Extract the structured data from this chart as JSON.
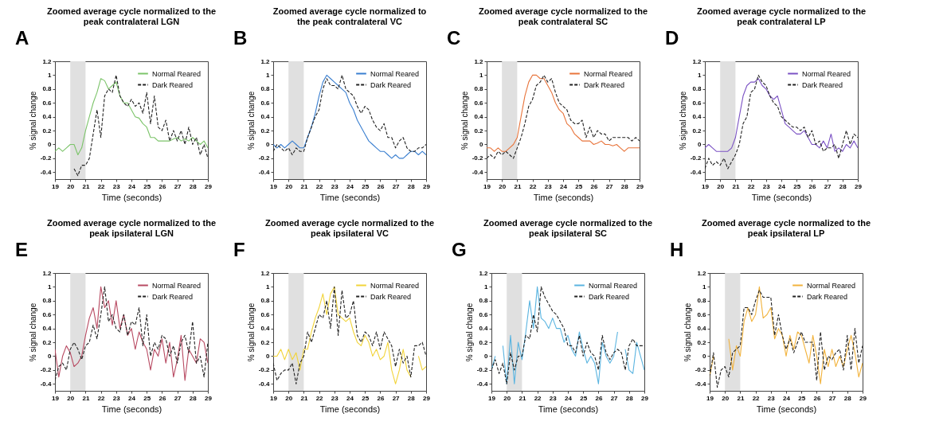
{
  "chart_data": [
    {
      "type": "line",
      "title": "Zoomed average cycle normalized to the\npeak contralateral LGN",
      "annotations": [
        "A"
      ],
      "xlabel": "Time (seconds)",
      "ylabel": "% signal change",
      "xlim": [
        19,
        29
      ],
      "xticks": [
        19,
        20,
        21,
        22,
        23,
        24,
        25,
        26,
        27,
        28,
        29
      ],
      "ylim": [
        -0.5,
        1.2
      ],
      "yticks": [
        -0.4,
        -0.2,
        0,
        0.2,
        0.4,
        0.6,
        0.8,
        1,
        1.2
      ],
      "grid": false,
      "legend": "top right",
      "marker": "none",
      "bands": [
        {
          "axis": "x",
          "from": 20,
          "to": 21,
          "color": "#e0e0e0"
        }
      ],
      "x": [
        19,
        19.25,
        19.5,
        19.75,
        20,
        20.25,
        20.5,
        20.75,
        21,
        21.25,
        21.5,
        21.75,
        22,
        22.25,
        22.5,
        22.75,
        23,
        23.25,
        23.5,
        23.75,
        24,
        24.25,
        24.5,
        24.75,
        25,
        25.25,
        25.5,
        25.75,
        26,
        26.25,
        26.5,
        26.75,
        27,
        27.25,
        27.5,
        27.75,
        28,
        28.25,
        28.5,
        28.75,
        29
      ],
      "series": [
        {
          "name": "Normal Reared",
          "color": "#7cc46a",
          "line_style": "solid",
          "values": [
            -0.1,
            -0.05,
            -0.1,
            -0.05,
            0,
            0,
            -0.15,
            -0.05,
            0.2,
            0.4,
            0.6,
            0.75,
            0.95,
            0.92,
            0.8,
            0.85,
            0.9,
            0.7,
            0.6,
            0.6,
            0.5,
            0.4,
            0.38,
            0.3,
            0.25,
            0.1,
            0.1,
            0.05,
            0.05,
            0.05,
            0.05,
            0.08,
            0.1,
            0.05,
            0.08,
            0.05,
            0.1,
            0.05,
            0,
            0.05,
            -0.05
          ]
        },
        {
          "name": "Dark Reared",
          "color": "#222222",
          "line_style": "dashed",
          "values": [
            null,
            null,
            null,
            null,
            null,
            -0.35,
            -0.45,
            -0.3,
            -0.3,
            -0.2,
            0.15,
            0.5,
            0.1,
            0.7,
            0.8,
            0.75,
            1,
            0.7,
            0.6,
            0.55,
            0.65,
            0.55,
            0.6,
            0.45,
            0.75,
            0.3,
            0.7,
            0.25,
            0.2,
            0.35,
            0.05,
            0.2,
            0.05,
            0.2,
            0,
            0.25,
            0,
            0.1,
            -0.15,
            0,
            -0.2
          ]
        }
      ]
    },
    {
      "type": "line",
      "title": "Zoomed average cycle normalized to\nthe peak contralateral VC",
      "annotations": [
        "B"
      ],
      "xlabel": "Time (seconds)",
      "ylabel": "% signal change",
      "xlim": [
        19,
        29
      ],
      "xticks": [
        19,
        20,
        21,
        22,
        23,
        24,
        25,
        26,
        27,
        28,
        29
      ],
      "ylim": [
        -0.5,
        1.2
      ],
      "yticks": [
        -0.4,
        -0.2,
        0,
        0.2,
        0.4,
        0.6,
        0.8,
        1,
        1.2
      ],
      "grid": false,
      "legend": "top right",
      "marker": "none",
      "bands": [
        {
          "axis": "x",
          "from": 20,
          "to": 21,
          "color": "#e0e0e0"
        }
      ],
      "x": [
        19,
        19.25,
        19.5,
        19.75,
        20,
        20.25,
        20.5,
        20.75,
        21,
        21.25,
        21.5,
        21.75,
        22,
        22.25,
        22.5,
        22.75,
        23,
        23.25,
        23.5,
        23.75,
        24,
        24.25,
        24.5,
        24.75,
        25,
        25.25,
        25.5,
        25.75,
        26,
        26.25,
        26.5,
        26.75,
        27,
        27.25,
        27.5,
        27.75,
        28,
        28.25,
        28.5,
        28.75,
        29
      ],
      "series": [
        {
          "name": "Normal Reared",
          "color": "#3a7fd0",
          "line_style": "solid",
          "values": [
            0,
            -0.05,
            0,
            -0.05,
            0,
            0.05,
            0,
            -0.05,
            -0.05,
            0.1,
            0.25,
            0.45,
            0.7,
            0.9,
            1,
            0.95,
            0.9,
            0.85,
            0.8,
            0.75,
            0.6,
            0.5,
            0.35,
            0.25,
            0.15,
            0.05,
            0,
            -0.05,
            -0.1,
            -0.1,
            -0.15,
            -0.2,
            -0.15,
            -0.2,
            -0.2,
            -0.15,
            -0.1,
            -0.1,
            -0.15,
            -0.1,
            -0.15
          ]
        },
        {
          "name": "Dark Reared",
          "color": "#222222",
          "line_style": "dashed",
          "values": [
            -0.1,
            0,
            -0.05,
            -0.1,
            -0.05,
            -0.15,
            -0.05,
            -0.1,
            -0.1,
            0.1,
            0.25,
            0.4,
            0.5,
            0.8,
            0.95,
            0.85,
            0.85,
            0.8,
            1,
            0.8,
            0.75,
            0.7,
            0.55,
            0.45,
            0.55,
            0.5,
            0.35,
            0.25,
            0.2,
            0.3,
            0.1,
            0.1,
            -0.05,
            0.05,
            0.1,
            -0.05,
            -0.1,
            -0.1,
            -0.05,
            -0.05,
            0
          ]
        }
      ]
    },
    {
      "type": "line",
      "title": "Zoomed average cycle normalized to the\npeak contralateral SC",
      "annotations": [
        "C"
      ],
      "xlabel": "Time (seconds)",
      "ylabel": "% signal change",
      "xlim": [
        19,
        29
      ],
      "xticks": [
        19,
        20,
        21,
        22,
        23,
        24,
        25,
        26,
        27,
        28,
        29
      ],
      "ylim": [
        -0.5,
        1.2
      ],
      "yticks": [
        -0.4,
        -0.2,
        0,
        0.2,
        0.4,
        0.6,
        0.8,
        1,
        1.2
      ],
      "grid": false,
      "legend": "top right",
      "marker": "none",
      "bands": [
        {
          "axis": "x",
          "from": 20,
          "to": 21,
          "color": "#e0e0e0"
        }
      ],
      "x": [
        19,
        19.25,
        19.5,
        19.75,
        20,
        20.25,
        20.5,
        20.75,
        21,
        21.25,
        21.5,
        21.75,
        22,
        22.25,
        22.5,
        22.75,
        23,
        23.25,
        23.5,
        23.75,
        24,
        24.25,
        24.5,
        24.75,
        25,
        25.25,
        25.5,
        25.75,
        26,
        26.25,
        26.5,
        26.75,
        27,
        27.25,
        27.5,
        27.75,
        28,
        28.25,
        28.5,
        28.75,
        29
      ],
      "series": [
        {
          "name": "Normal Reared",
          "color": "#e8743b",
          "line_style": "solid",
          "values": [
            -0.05,
            -0.05,
            -0.1,
            -0.05,
            -0.1,
            -0.1,
            -0.05,
            0,
            0.1,
            0.4,
            0.7,
            0.9,
            1,
            1,
            0.95,
            0.95,
            0.85,
            0.75,
            0.6,
            0.5,
            0.45,
            0.3,
            0.25,
            0.15,
            0.1,
            0.05,
            0.05,
            0.05,
            0,
            0.02,
            0.05,
            0,
            0,
            -0.02,
            0,
            -0.05,
            -0.1,
            -0.05,
            -0.05,
            -0.05,
            -0.05
          ]
        },
        {
          "name": "Dark Reared",
          "color": "#222222",
          "line_style": "dashed",
          "values": [
            -0.2,
            -0.15,
            -0.2,
            -0.1,
            -0.15,
            -0.1,
            -0.15,
            -0.2,
            -0.05,
            0.1,
            0.3,
            0.55,
            0.65,
            0.85,
            0.9,
            1,
            0.9,
            0.95,
            0.75,
            0.6,
            0.55,
            0.5,
            0.35,
            0.3,
            0.3,
            0.35,
            0.1,
            0.25,
            0.1,
            0.2,
            0.15,
            0.15,
            0.05,
            0.1,
            0.1,
            0.1,
            0.1,
            0.1,
            0.05,
            0.1,
            0.05
          ]
        }
      ]
    },
    {
      "type": "line",
      "title": "Zoomed average cycle normalized to the\npeak contralateral LP",
      "annotations": [
        "D"
      ],
      "xlabel": "Time (seconds)",
      "ylabel": "% signal change",
      "xlim": [
        19,
        29
      ],
      "xticks": [
        19,
        20,
        21,
        22,
        23,
        24,
        25,
        26,
        27,
        28,
        29
      ],
      "ylim": [
        -0.5,
        1.2
      ],
      "yticks": [
        -0.4,
        -0.2,
        0,
        0.2,
        0.4,
        0.6,
        0.8,
        1,
        1.2
      ],
      "grid": false,
      "legend": "top right",
      "marker": "none",
      "bands": [
        {
          "axis": "x",
          "from": 20,
          "to": 21,
          "color": "#e0e0e0"
        }
      ],
      "x": [
        19,
        19.25,
        19.5,
        19.75,
        20,
        20.25,
        20.5,
        20.75,
        21,
        21.25,
        21.5,
        21.75,
        22,
        22.25,
        22.5,
        22.75,
        23,
        23.25,
        23.5,
        23.75,
        24,
        24.25,
        24.5,
        24.75,
        25,
        25.25,
        25.5,
        25.75,
        26,
        26.25,
        26.5,
        26.75,
        27,
        27.25,
        27.5,
        27.75,
        28,
        28.25,
        28.5,
        28.75,
        29
      ],
      "series": [
        {
          "name": "Normal Reared",
          "color": "#7b52c4",
          "line_style": "solid",
          "values": [
            -0.05,
            0,
            -0.05,
            -0.1,
            -0.1,
            -0.1,
            -0.1,
            -0.05,
            0.1,
            0.4,
            0.7,
            0.85,
            0.9,
            0.9,
            0.95,
            0.85,
            0.8,
            0.7,
            0.65,
            0.7,
            0.5,
            0.3,
            0.25,
            0.2,
            0.15,
            0.15,
            0.2,
            0.1,
            0,
            0,
            -0.05,
            0.05,
            -0.05,
            0.15,
            -0.1,
            -0.05,
            -0.1,
            0,
            -0.05,
            0.05,
            -0.05
          ]
        },
        {
          "name": "Dark Reared",
          "color": "#222222",
          "line_style": "dashed",
          "values": [
            -0.35,
            -0.2,
            -0.3,
            -0.25,
            -0.3,
            -0.2,
            -0.35,
            -0.25,
            -0.15,
            0,
            0.3,
            0.4,
            0.75,
            0.8,
            1,
            0.9,
            0.85,
            0.7,
            0.6,
            0.55,
            0.4,
            0.35,
            0.3,
            0.25,
            0.25,
            0.2,
            0.25,
            0.1,
            0.2,
            0,
            0.05,
            -0.1,
            -0.05,
            -0.05,
            0,
            -0.2,
            0,
            0.2,
            0,
            0.15,
            0.1
          ]
        }
      ]
    },
    {
      "type": "line",
      "title": "Zoomed average cycle normalized to the\npeak ipsilateral LGN",
      "annotations": [
        "E"
      ],
      "xlabel": "Time (seconds)",
      "ylabel": "% signal change",
      "xlim": [
        19,
        29
      ],
      "xticks": [
        19,
        20,
        21,
        22,
        23,
        24,
        25,
        26,
        27,
        28,
        29
      ],
      "ylim": [
        -0.5,
        1.2
      ],
      "yticks": [
        -0.4,
        -0.2,
        0,
        0.2,
        0.4,
        0.6,
        0.8,
        1,
        1.2
      ],
      "grid": false,
      "legend": "top right",
      "marker": "none",
      "bands": [
        {
          "axis": "x",
          "from": 20,
          "to": 21,
          "color": "#e0e0e0"
        }
      ],
      "x": [
        19,
        19.25,
        19.5,
        19.75,
        20,
        20.25,
        20.5,
        20.75,
        21,
        21.25,
        21.5,
        21.75,
        22,
        22.25,
        22.5,
        22.75,
        23,
        23.25,
        23.5,
        23.75,
        24,
        24.25,
        24.5,
        24.75,
        25,
        25.25,
        25.5,
        25.75,
        26,
        26.25,
        26.5,
        26.75,
        27,
        27.25,
        27.5,
        27.75,
        28,
        28.25,
        28.5,
        28.75,
        29
      ],
      "series": [
        {
          "name": "Normal Reared",
          "color": "#b84a62",
          "line_style": "solid",
          "values": [
            0.1,
            -0.3,
            0,
            0.15,
            0.05,
            -0.15,
            -0.1,
            0,
            0.3,
            0.55,
            0.7,
            0.4,
            1,
            0.7,
            0.8,
            0.45,
            0.8,
            0.4,
            0.6,
            0.3,
            0.4,
            0.1,
            0.35,
            0.2,
            0.1,
            -0.2,
            0.1,
            0,
            0.25,
            -0.1,
            0.2,
            -0.3,
            -0.05,
            0.3,
            -0.35,
            0.1,
            0,
            -0.1,
            0.25,
            0.2,
            -0.1
          ]
        },
        {
          "name": "Dark Reared",
          "color": "#222222",
          "line_style": "dashed",
          "values": [
            -0.35,
            -0.15,
            -0.1,
            -0.2,
            0.1,
            0.2,
            0.1,
            -0.05,
            0.15,
            0.2,
            0.45,
            0.25,
            0.6,
            1,
            0.5,
            0.6,
            0.4,
            0.35,
            0.6,
            0.3,
            0.5,
            0.45,
            0.7,
            0.15,
            0.6,
            0,
            0.2,
            0.1,
            0.3,
            0.25,
            0,
            0.15,
            -0.1,
            0.2,
            0.3,
            0.05,
            0.5,
            -0.1,
            0,
            -0.3,
            0.2
          ]
        }
      ]
    },
    {
      "type": "line",
      "title": "Zoomed average cycle normalized to the\npeak ipsilateral VC",
      "annotations": [
        "F"
      ],
      "xlabel": "Time (seconds)",
      "ylabel": "% signal change",
      "xlim": [
        19,
        29
      ],
      "xticks": [
        19,
        20,
        21,
        22,
        23,
        24,
        25,
        26,
        27,
        28,
        29
      ],
      "ylim": [
        -0.5,
        1.2
      ],
      "yticks": [
        -0.4,
        -0.2,
        0,
        0.2,
        0.4,
        0.6,
        0.8,
        1,
        1.2
      ],
      "grid": false,
      "legend": "top right",
      "marker": "none",
      "bands": [
        {
          "axis": "x",
          "from": 20,
          "to": 21,
          "color": "#e0e0e0"
        }
      ],
      "x": [
        19,
        19.25,
        19.5,
        19.75,
        20,
        20.25,
        20.5,
        20.75,
        21,
        21.25,
        21.5,
        21.75,
        22,
        22.25,
        22.5,
        22.75,
        23,
        23.25,
        23.5,
        23.75,
        24,
        24.25,
        24.5,
        24.75,
        25,
        25.25,
        25.5,
        25.75,
        26,
        26.25,
        26.5,
        26.75,
        27,
        27.25,
        27.5,
        27.75,
        28,
        28.25,
        28.5,
        28.75,
        29
      ],
      "series": [
        {
          "name": "Normal Reared",
          "color": "#f2d43a",
          "line_style": "solid",
          "values": [
            0,
            0,
            0.1,
            -0.05,
            0.1,
            -0.05,
            0.05,
            -0.2,
            0.1,
            0.1,
            0.35,
            0.55,
            0.7,
            0.9,
            0.6,
            0.9,
            1,
            0.6,
            0.55,
            0.5,
            0.55,
            0.35,
            0.2,
            0.15,
            0.3,
            0.2,
            0,
            0.1,
            -0.05,
            0,
            0.2,
            -0.2,
            -0.4,
            -0.2,
            0.1,
            -0.2,
            -0.3,
            null,
            0,
            -0.2,
            -0.15
          ]
        },
        {
          "name": "Dark Reared",
          "color": "#222222",
          "line_style": "dashed",
          "values": [
            -0.1,
            -0.35,
            -0.25,
            -0.2,
            -0.2,
            -0.1,
            -0.4,
            -0.1,
            0,
            0.35,
            0.2,
            0.4,
            0.6,
            0.55,
            0.8,
            0.4,
            1,
            0.3,
            0.95,
            0.55,
            0.6,
            0.8,
            0.3,
            0.2,
            0.35,
            0.3,
            0.15,
            0.35,
            0.1,
            0.35,
            0.25,
            0.15,
            -0.15,
            0.1,
            -0.1,
            0,
            -0.3,
            0.15,
            0.15,
            0.2,
            0
          ]
        }
      ]
    },
    {
      "type": "line",
      "title": "Zoomed average cycle normalized to the\npeak ipsilateral SC",
      "annotations": [
        "G"
      ],
      "xlabel": "Time (seconds)",
      "ylabel": "% signal change",
      "xlim": [
        19,
        29
      ],
      "xticks": [
        19,
        20,
        21,
        22,
        23,
        24,
        25,
        26,
        27,
        28,
        29
      ],
      "ylim": [
        -0.5,
        1.2
      ],
      "yticks": [
        -0.4,
        -0.2,
        0,
        0.2,
        0.4,
        0.6,
        0.8,
        1,
        1.2
      ],
      "grid": false,
      "legend": "top right",
      "marker": "none",
      "bands": [
        {
          "axis": "x",
          "from": 20,
          "to": 21,
          "color": "#e0e0e0"
        }
      ],
      "x": [
        19,
        19.25,
        19.5,
        19.75,
        20,
        20.25,
        20.5,
        20.75,
        21,
        21.25,
        21.5,
        21.75,
        22,
        22.25,
        22.5,
        22.75,
        23,
        23.25,
        23.5,
        23.75,
        24,
        24.25,
        24.5,
        24.75,
        25,
        25.25,
        25.5,
        25.75,
        26,
        26.25,
        26.5,
        26.75,
        27,
        27.25,
        27.5,
        27.75,
        28,
        28.25,
        28.5,
        28.75,
        29
      ],
      "series": [
        {
          "name": "Normal Reared",
          "color": "#5ab4e0",
          "line_style": "solid",
          "values": [
            -0.2,
            0,
            null,
            0.15,
            -0.4,
            0.3,
            -0.4,
            0.2,
            -0.05,
            0.35,
            0.8,
            0.4,
            1,
            0.55,
            0.5,
            0.4,
            0.55,
            0.4,
            0.4,
            0.2,
            0.3,
            0.1,
            0,
            0.35,
            0.1,
            -0.1,
            0,
            -0.1,
            -0.4,
            0.2,
            0,
            -0.1,
            0,
            0.35,
            null,
            0.1,
            -0.2,
            -0.25,
            0.2,
            0,
            -0.2
          ]
        },
        {
          "name": "Dark Reared",
          "color": "#222222",
          "line_style": "dashed",
          "values": [
            -0.2,
            -0.05,
            -0.25,
            -0.1,
            -0.4,
            0.05,
            -0.2,
            0,
            0,
            0.3,
            0.25,
            0.6,
            0.35,
            1,
            0.85,
            0.75,
            0.65,
            0.6,
            0.5,
            0.4,
            0.15,
            0.15,
            0.05,
            0.3,
            0,
            0.2,
            0.05,
            0,
            -0.2,
            0.3,
            0.05,
            -0.05,
            0.05,
            0.1,
            0.05,
            -0.2,
            0.15,
            0.25,
            0.15,
            0.15,
            0.15
          ]
        }
      ]
    },
    {
      "type": "line",
      "title": "Zoomed average cycle normalized to the\npeak ipsilateral LP",
      "annotations": [
        "H"
      ],
      "xlabel": "Time (seconds)",
      "ylabel": "% signal change",
      "xlim": [
        19,
        29
      ],
      "xticks": [
        19,
        20,
        21,
        22,
        23,
        24,
        25,
        26,
        27,
        28,
        29
      ],
      "ylim": [
        -0.5,
        1.2
      ],
      "yticks": [
        -0.4,
        -0.2,
        0,
        0.2,
        0.4,
        0.6,
        0.8,
        1,
        1.2
      ],
      "grid": false,
      "legend": "top right",
      "marker": "none",
      "bands": [
        {
          "axis": "x",
          "from": 20,
          "to": 21,
          "color": "#e0e0e0"
        }
      ],
      "x": [
        19,
        19.25,
        19.5,
        19.75,
        20,
        20.25,
        20.5,
        20.75,
        21,
        21.25,
        21.5,
        21.75,
        22,
        22.25,
        22.5,
        22.75,
        23,
        23.25,
        23.5,
        23.75,
        24,
        24.25,
        24.5,
        24.75,
        25,
        25.25,
        25.5,
        25.75,
        26,
        26.25,
        26.5,
        26.75,
        27,
        27.25,
        27.5,
        27.75,
        28,
        28.25,
        28.5,
        28.75,
        29
      ],
      "series": [
        {
          "name": "Normal Reared",
          "color": "#f2b33d",
          "line_style": "solid",
          "values": [
            -0.3,
            0,
            null,
            null,
            null,
            0.25,
            -0.2,
            0.15,
            0,
            0.5,
            0.7,
            0.5,
            0.6,
            1,
            0.55,
            0.6,
            0.7,
            0.25,
            0.4,
            0.3,
            0,
            0.3,
            0.1,
            0.35,
            0.3,
            0.1,
            -0.1,
            0.3,
            0,
            -0.4,
            0.1,
            -0.15,
            0.1,
            -0.15,
            0,
            -0.15,
            0.1,
            0.3,
            0.05,
            -0.3,
            -0.1
          ]
        },
        {
          "name": "Dark Reared",
          "color": "#222222",
          "line_style": "dashed",
          "values": [
            -0.3,
            0.05,
            -0.45,
            -0.2,
            -0.15,
            -0.3,
            0.05,
            0.1,
            0.15,
            0.7,
            0.7,
            0.6,
            0.8,
            0.95,
            0.85,
            0.85,
            0.85,
            0.3,
            0.6,
            0.3,
            0.1,
            0.25,
            0.05,
            0.2,
            0.35,
            0.2,
            0.2,
            0.2,
            -0.35,
            0.35,
            -0.2,
            0,
            -0.05,
            0.05,
            0.1,
            -0.2,
            0.3,
            -0.2,
            0.4,
            -0.1,
            0.15
          ]
        }
      ]
    }
  ]
}
